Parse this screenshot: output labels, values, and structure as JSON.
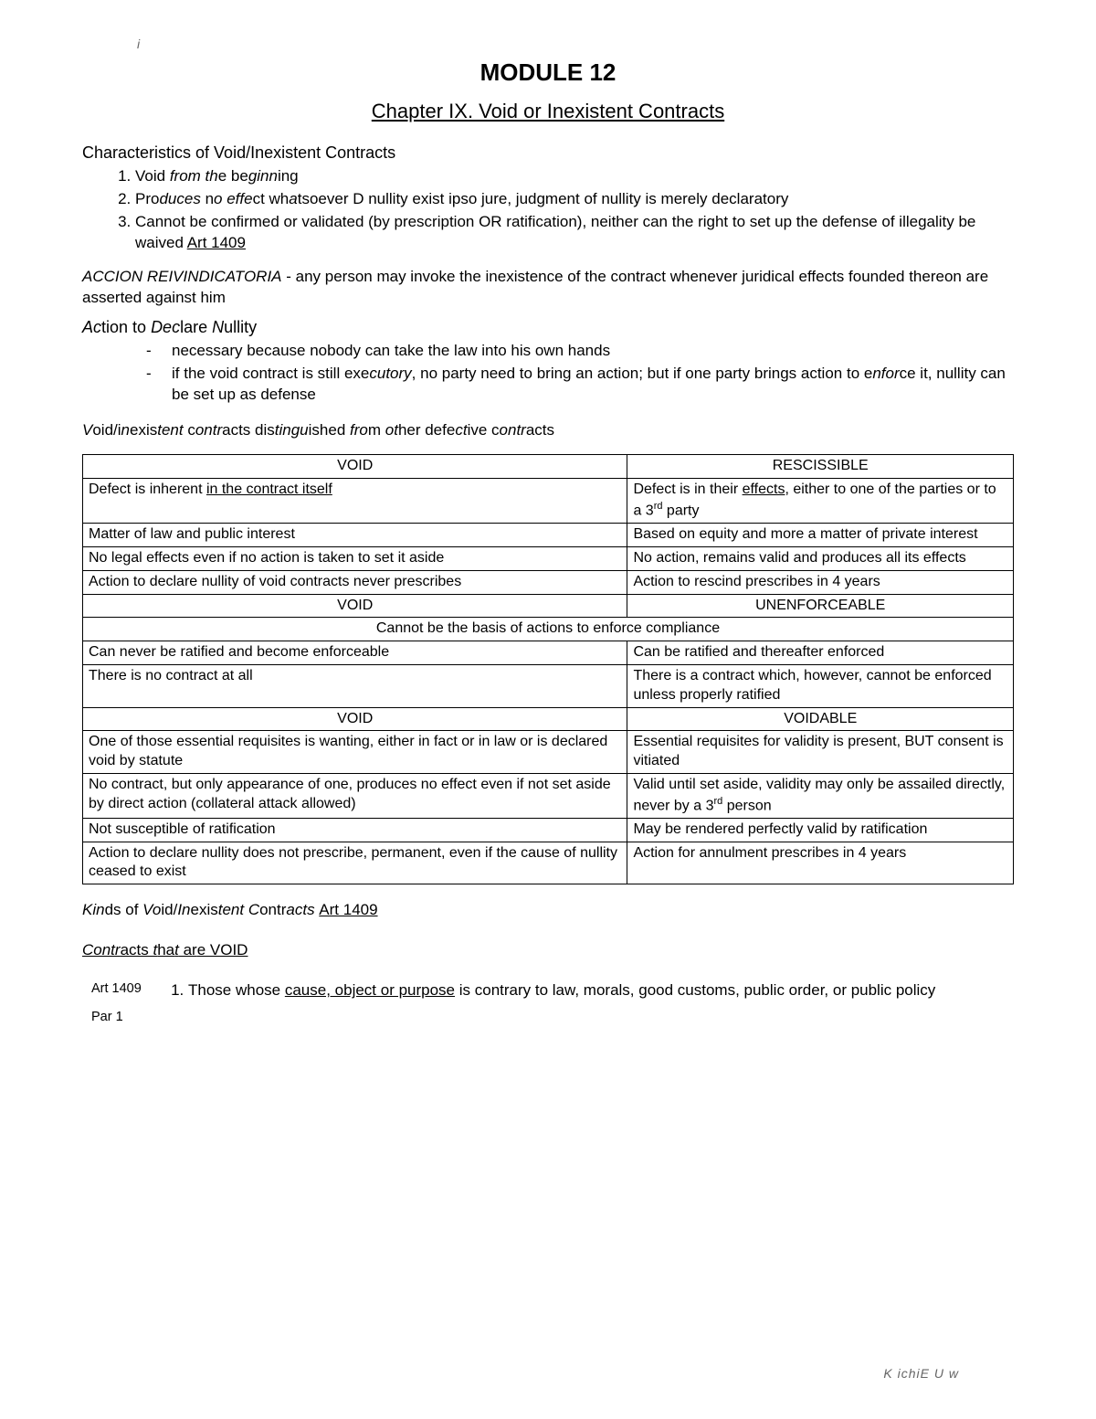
{
  "topMark": "i",
  "moduleTitle": "MODULE 12",
  "chapterTitle": "Chapter IX. Void or Inexistent Contracts",
  "charHeading": "Characteristics of Void/Inexistent Contracts",
  "charItems": {
    "c1a": "Void ",
    "c1b": "from th",
    "c1c": "e be",
    "c1d": "ginn",
    "c1e": "ing",
    "c2a": "Pro",
    "c2b": "duces ",
    "c2c": "n",
    "c2d": "o effe",
    "c2e": "ct wh",
    "c2f": "a",
    "c2g": "tsoever ",
    "c2h": "D",
    "c2i": " nullity exist ipso jure, judgment of nullity is merely declaratory",
    "c3a": "Cannot be confirmed or validated (by prescription OR ratification), neither can the right to set up the defense of illegality be waived ",
    "c3b": "Art 1409"
  },
  "accion": {
    "title": "ACCION REIVINDICATORIA",
    "body": " - any person may invoke the inexistence of the contract whenever juridical effects founded thereon are asserted against him"
  },
  "actionHeading_pre": "Ac",
  "actionHeading_mid1": "tion to ",
  "actionHeading_Dec": "Dec",
  "actionHeading_mid2": "lare ",
  "actionHeading_N": "N",
  "actionHeading_end": "ullity",
  "actionItems": {
    "a1": "necessary because nobody can take the law into his own hands",
    "a2a": "if the void contract is still exe",
    "a2b": "cutory",
    "a2c": ", no party need to bring an action; but if one party brings action to e",
    "a2d": "nfor",
    "a2e": "ce it, nullity can be set up as defense"
  },
  "distHeading": {
    "p1": "V",
    "p2": "oid/i",
    "p3": "n",
    "p4": "exis",
    "p5": "tent",
    "p6": " c",
    "p7": "ontr",
    "p8": "acts dis",
    "p9": "tingu",
    "p10": "ished ",
    "p11": "fro",
    "p12": "m ",
    "p13": "ot",
    "p14": "her defe",
    "p15": "ct",
    "p16": "ive c",
    "p17": "ontr",
    "p18": "acts"
  },
  "table": {
    "h_void": "VOID",
    "h_resc": "RESCISSIBLE",
    "h_unen": "UNENFORCEABLE",
    "h_voidable": "VOIDABLE",
    "r1l_a": "Defect is inherent ",
    "r1l_b": "in the contract itself",
    "r1r_a": "Defect is in their ",
    "r1r_b": "effects",
    "r1r_c": ", either to one of the parties or to a 3",
    "r1r_d": "rd",
    "r1r_e": " party",
    "r2l": "Matter of law and public interest",
    "r2r": "Based on equity and more a matter of private interest",
    "r3l": "No legal effects even if no action is taken to set it aside",
    "r3r": "No action, remains valid and produces all its effects",
    "r4l": "Action to declare nullity of void contracts never prescribes",
    "r4r": "Action to rescind prescribes in 4 years",
    "span1": "Cannot be the basis of actions to enforce compliance",
    "r5l": "Can never be ratified and become enforceable",
    "r5r": "Can be ratified and thereafter enforced",
    "r6l": "There is no contract at all",
    "r6r": "There is a contract which, however, cannot be enforced unless properly ratified",
    "r7l": "One of those essential requisites is wanting, either in fact or in law or is declared void by statute",
    "r7r": "Essential requisites for validity is present, BUT consent is vitiated",
    "r8l": "No contract, but only appearance of one, produces no effect even if not set aside by direct action (collateral attack allowed)",
    "r8r_a": "Valid until set aside, validity may only be assailed directly, never by a 3",
    "r8r_b": "rd",
    "r8r_c": " person",
    "r9l": "Not susceptible of ratification",
    "r9r": "May be rendered perfectly valid by ratification",
    "r10l": "Action to declare nullity does not prescribe, permanent, even if the cause of nullity ceased to exist",
    "r10r": "Action for annulment prescribes in 4 years"
  },
  "kinds": {
    "p1": "Kin",
    "p2": "ds of ",
    "p3": "Vo",
    "p4": "id/",
    "p5": "In",
    "p6": "exis",
    "p7": "tent C",
    "p8": "ontr",
    "p9": "acts ",
    "art": "Art 1409"
  },
  "voidLabel": {
    "p1": "Contr",
    "p2": "acts ",
    "p3": "t",
    "p4": "ha",
    "p5": "t",
    "p6": " ar",
    "p7": "e VOID"
  },
  "artBlock": {
    "artRef": "Art 1409",
    "parRef": "Par 1",
    "item_a": "Those whose ",
    "item_b": "cause, object or purpose",
    "item_c": " is contrary to law, morals, good customs, public order, or public policy"
  },
  "footer": "K ichiE    U   w"
}
